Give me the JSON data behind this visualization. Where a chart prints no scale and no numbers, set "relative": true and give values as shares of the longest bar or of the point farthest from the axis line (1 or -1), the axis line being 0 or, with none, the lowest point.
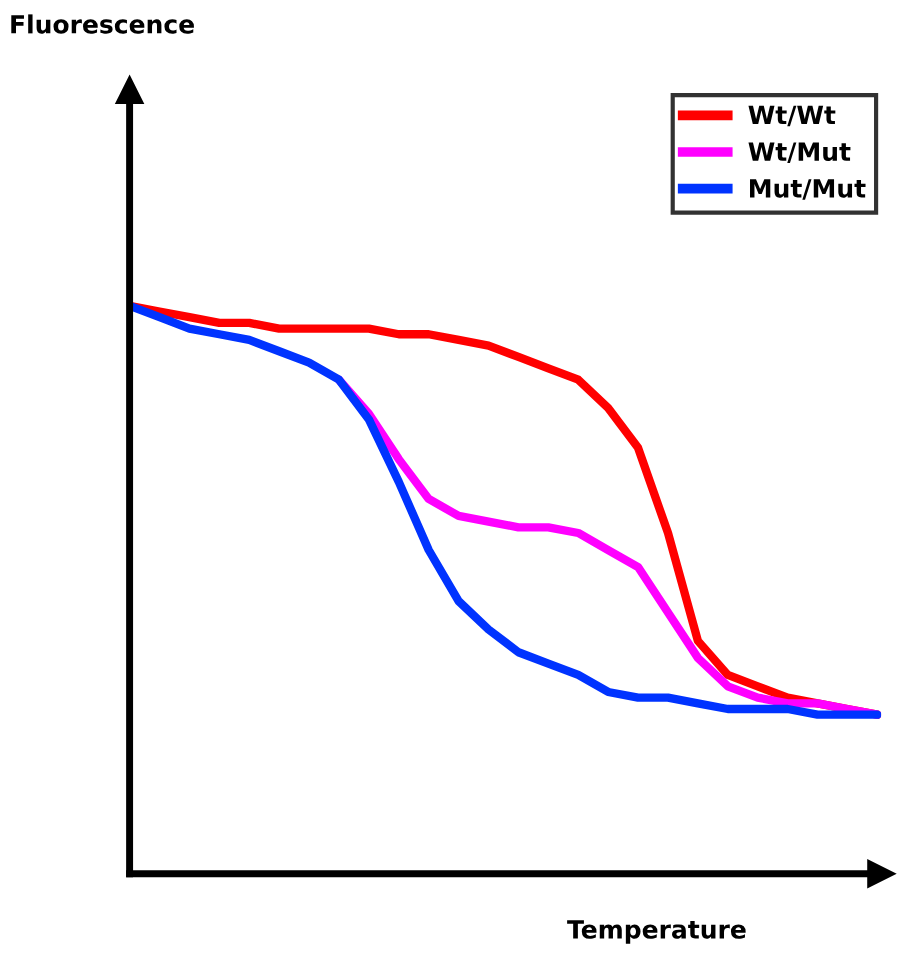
{
  "chart_data": {
    "type": "line",
    "relative": true,
    "xlabel": "Temperature",
    "annotations": [
      "Fluorescence"
    ],
    "legend": "top right",
    "line_style": "solid",
    "marker": "none",
    "categories": [
      null,
      null,
      null,
      null,
      null,
      null,
      null,
      null,
      null,
      null,
      null,
      null,
      null,
      null,
      null,
      null,
      null,
      null,
      null,
      null,
      null,
      null,
      null,
      null,
      null,
      null
    ],
    "series": [
      {
        "name": "Wt/Wt",
        "color": "#ff0000",
        "values": [
          1.0,
          0.99,
          0.98,
          0.97,
          0.97,
          0.96,
          0.96,
          0.96,
          0.96,
          0.95,
          0.95,
          0.94,
          0.93,
          0.91,
          0.89,
          0.87,
          0.82,
          0.75,
          0.6,
          0.41,
          0.35,
          0.33,
          0.31,
          0.3,
          0.29,
          0.28
        ]
      },
      {
        "name": "Wt/Mut",
        "color": "#ff00ff",
        "values": [
          null,
          null,
          null,
          null,
          null,
          null,
          null,
          0.87,
          0.81,
          0.73,
          0.66,
          0.63,
          0.62,
          0.61,
          0.61,
          0.6,
          0.57,
          0.54,
          0.46,
          0.38,
          0.33,
          0.31,
          0.3,
          0.3,
          0.29,
          0.28
        ]
      },
      {
        "name": "Mut/Mut",
        "color": "#0033ff",
        "values": [
          1.0,
          0.98,
          0.96,
          0.95,
          0.94,
          0.92,
          0.9,
          0.87,
          0.8,
          0.69,
          0.57,
          0.48,
          0.43,
          0.39,
          0.37,
          0.35,
          0.32,
          0.31,
          0.31,
          0.3,
          0.29,
          0.29,
          0.29,
          0.28,
          0.28,
          0.28
        ]
      }
    ]
  }
}
